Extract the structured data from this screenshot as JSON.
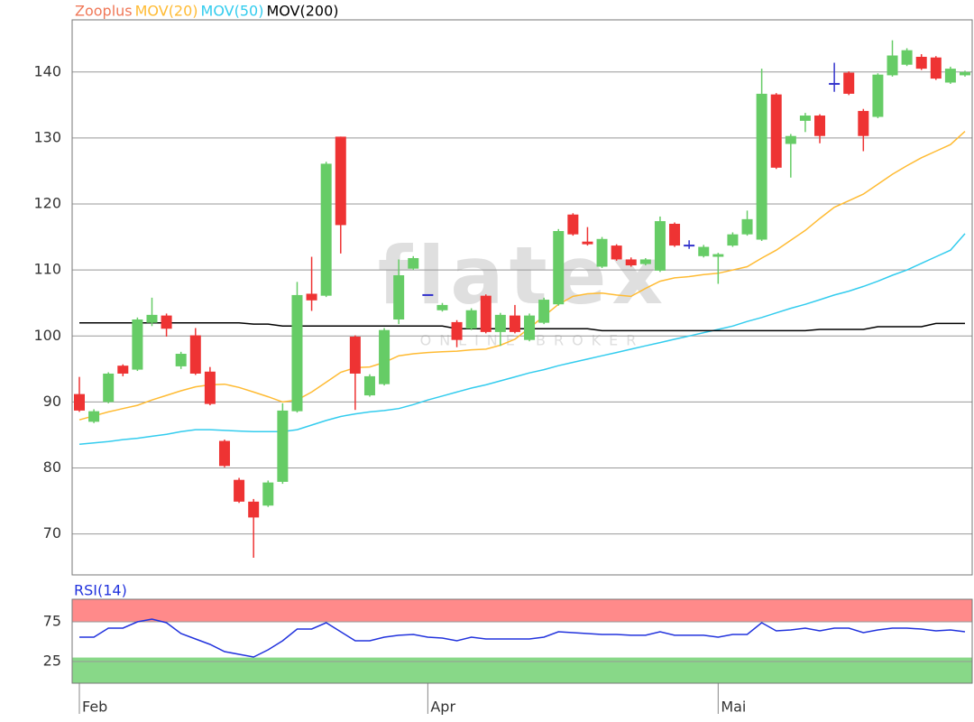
{
  "chart_data": [
    {
      "type": "candlestick",
      "name": "Zooplus",
      "color": "#f07858",
      "up_color": "#66cc66",
      "down_color": "#ee3333",
      "doji_color": "#3333cc",
      "watermark": {
        "logo": "flatex",
        "tagline": "ONLINE BROKER"
      },
      "open": [
        91.2,
        87.0,
        90.0,
        95.5,
        94.9,
        102.0,
        103.1,
        95.4,
        100.1,
        94.6,
        84.1,
        78.2,
        74.9,
        74.3,
        77.9,
        88.6,
        106.4,
        106.1,
        130.2,
        99.9,
        91.0,
        92.7,
        102.5,
        110.2,
        106.2,
        103.9,
        102.1,
        101.1,
        106.1,
        100.6,
        103.1,
        99.4,
        102.0,
        104.8,
        118.4,
        114.3,
        110.5,
        113.7,
        111.6,
        110.9,
        109.9,
        117.0,
        113.7,
        112.1,
        112.0,
        113.7,
        115.4,
        114.6,
        136.6,
        129.1,
        132.6,
        133.4,
        138.2,
        139.9,
        134.1,
        133.2,
        139.5,
        141.1,
        142.3,
        142.2,
        138.4,
        139.5
      ],
      "high": [
        93.8,
        88.9,
        94.5,
        95.7,
        102.8,
        105.8,
        103.4,
        97.6,
        101.2,
        95.3,
        84.3,
        78.5,
        75.3,
        78.1,
        89.8,
        108.2,
        112.0,
        126.4,
        130.2,
        100.1,
        94.2,
        101.2,
        111.6,
        112.1,
        106.2,
        105.0,
        102.4,
        104.2,
        106.3,
        103.5,
        104.7,
        103.4,
        105.8,
        116.2,
        118.6,
        116.5,
        115.0,
        113.9,
        111.9,
        111.8,
        118.1,
        117.2,
        114.5,
        113.8,
        112.6,
        115.7,
        119.0,
        140.5,
        136.8,
        130.6,
        133.8,
        133.6,
        141.4,
        140.1,
        134.4,
        139.8,
        144.8,
        143.6,
        142.7,
        142.4,
        140.8,
        140.2
      ],
      "low": [
        88.5,
        86.8,
        89.8,
        93.9,
        94.7,
        101.5,
        99.9,
        95.0,
        94.1,
        89.5,
        80.1,
        74.7,
        66.4,
        74.1,
        77.6,
        88.4,
        103.8,
        105.9,
        112.5,
        88.8,
        90.8,
        92.5,
        101.8,
        110.0,
        106.2,
        103.7,
        98.3,
        100.9,
        100.4,
        98.5,
        100.4,
        99.2,
        101.8,
        104.6,
        115.2,
        113.7,
        110.3,
        111.4,
        110.5,
        110.7,
        109.7,
        113.5,
        113.2,
        111.9,
        107.9,
        113.5,
        115.2,
        114.4,
        125.3,
        124.0,
        130.9,
        129.2,
        137.0,
        136.5,
        128.0,
        133.0,
        139.3,
        140.9,
        140.3,
        138.8,
        138.2,
        139.3
      ],
      "close": [
        88.7,
        88.6,
        94.3,
        94.3,
        102.5,
        103.2,
        101.1,
        97.3,
        94.3,
        89.7,
        80.3,
        74.9,
        72.5,
        77.8,
        88.7,
        106.2,
        105.4,
        126.1,
        116.8,
        94.3,
        93.9,
        100.9,
        109.2,
        111.8,
        106.2,
        104.7,
        99.4,
        103.9,
        100.6,
        103.2,
        100.6,
        103.1,
        105.5,
        115.9,
        115.4,
        113.9,
        114.7,
        111.6,
        110.7,
        111.6,
        117.4,
        113.7,
        113.7,
        113.5,
        112.4,
        115.4,
        117.7,
        136.7,
        125.5,
        130.3,
        133.4,
        130.3,
        138.2,
        136.7,
        130.3,
        139.6,
        142.5,
        143.3,
        140.5,
        139.0,
        140.5,
        140.0
      ],
      "series": [
        {
          "name": "MOV(20)",
          "color": "#ffbb33",
          "values": [
            87.3,
            87.9,
            88.5,
            89.0,
            89.5,
            90.3,
            91.0,
            91.7,
            92.3,
            92.6,
            92.7,
            92.2,
            91.5,
            90.8,
            90.0,
            90.3,
            91.5,
            93.0,
            94.5,
            95.2,
            95.3,
            96.0,
            97.0,
            97.3,
            97.5,
            97.6,
            97.7,
            97.9,
            98.0,
            98.6,
            99.5,
            101.2,
            103.0,
            104.8,
            106.0,
            106.4,
            106.5,
            106.2,
            106.0,
            107.2,
            108.3,
            108.8,
            109.0,
            109.3,
            109.5,
            110.0,
            110.5,
            111.8,
            113.0,
            114.5,
            116.0,
            117.8,
            119.5,
            120.5,
            121.5,
            123.0,
            124.5,
            125.8,
            127.0,
            128.0,
            129.0,
            131.0
          ]
        },
        {
          "name": "MOV(50)",
          "color": "#33ccee",
          "values": [
            83.6,
            83.8,
            84.0,
            84.3,
            84.5,
            84.8,
            85.1,
            85.5,
            85.8,
            85.8,
            85.7,
            85.6,
            85.5,
            85.5,
            85.5,
            85.8,
            86.5,
            87.2,
            87.8,
            88.2,
            88.5,
            88.7,
            89.0,
            89.6,
            90.3,
            90.9,
            91.5,
            92.1,
            92.6,
            93.2,
            93.8,
            94.4,
            94.9,
            95.5,
            96.0,
            96.5,
            97.0,
            97.5,
            98.0,
            98.5,
            99.0,
            99.5,
            100.0,
            100.5,
            101.0,
            101.5,
            102.2,
            102.8,
            103.5,
            104.2,
            104.8,
            105.5,
            106.2,
            106.8,
            107.5,
            108.3,
            109.2,
            110.0,
            111.0,
            112.0,
            113.0,
            115.5
          ]
        },
        {
          "name": "MOV(200)",
          "color": "#000000",
          "values": [
            102.0,
            102.0,
            102.0,
            102.0,
            102.0,
            102.0,
            102.0,
            102.0,
            102.0,
            102.0,
            102.0,
            102.0,
            101.8,
            101.8,
            101.5,
            101.5,
            101.5,
            101.5,
            101.5,
            101.5,
            101.5,
            101.5,
            101.5,
            101.5,
            101.5,
            101.5,
            101.1,
            101.1,
            101.1,
            101.1,
            101.1,
            101.1,
            101.1,
            101.1,
            101.1,
            101.1,
            100.8,
            100.8,
            100.8,
            100.8,
            100.8,
            100.8,
            100.8,
            100.8,
            100.8,
            100.8,
            100.8,
            100.8,
            100.8,
            100.8,
            100.8,
            101.0,
            101.0,
            101.0,
            101.0,
            101.4,
            101.4,
            101.4,
            101.4,
            101.9,
            101.9,
            101.9
          ]
        }
      ],
      "ylim": [
        63.8,
        147.9
      ],
      "yticks": [
        70,
        80,
        90,
        100,
        110,
        120,
        130,
        140
      ],
      "grid": true
    },
    {
      "type": "line",
      "categories": [
        "Feb",
        null,
        null,
        null,
        null,
        null,
        null,
        null,
        null,
        null,
        null,
        null,
        null,
        null,
        null,
        null,
        null,
        null,
        null,
        null,
        null,
        null,
        null,
        null,
        "Apr",
        null,
        null,
        null,
        null,
        null,
        null,
        null,
        null,
        null,
        null,
        null,
        null,
        null,
        null,
        null,
        null,
        null,
        null,
        null,
        "Mai",
        null,
        null,
        null,
        null,
        null,
        null,
        null,
        null,
        null,
        null,
        null,
        null,
        null,
        null,
        null,
        null,
        null
      ],
      "series": [
        {
          "name": "RSI(14)",
          "color": "#2233dd",
          "values": [
            55.7,
            55.7,
            67.0,
            67.0,
            75.0,
            78.4,
            73.9,
            60.2,
            53.4,
            46.6,
            37.5,
            34.1,
            30.7,
            39.8,
            51.1,
            65.9,
            65.9,
            73.9,
            62.5,
            51.1,
            51.1,
            55.7,
            58.0,
            59.1,
            55.7,
            54.5,
            51.1,
            55.7,
            53.4,
            53.4,
            53.4,
            53.4,
            55.7,
            62.5,
            61.4,
            60.2,
            59.1,
            59.1,
            58.0,
            58.0,
            62.5,
            58.0,
            58.0,
            58.0,
            55.7,
            59.1,
            59.1,
            73.9,
            63.6,
            64.8,
            67.0,
            63.6,
            67.0,
            67.0,
            61.4,
            64.8,
            67.0,
            67.0,
            65.9,
            63.6,
            64.8,
            62.5
          ]
        }
      ],
      "bands": [
        {
          "above": 75,
          "color": "#ff8a8a"
        },
        {
          "below": 30,
          "color": "#88d888"
        }
      ],
      "ylim": [
        -2.3,
        103.4
      ],
      "yticks": [
        25,
        75
      ],
      "grid": true
    }
  ]
}
